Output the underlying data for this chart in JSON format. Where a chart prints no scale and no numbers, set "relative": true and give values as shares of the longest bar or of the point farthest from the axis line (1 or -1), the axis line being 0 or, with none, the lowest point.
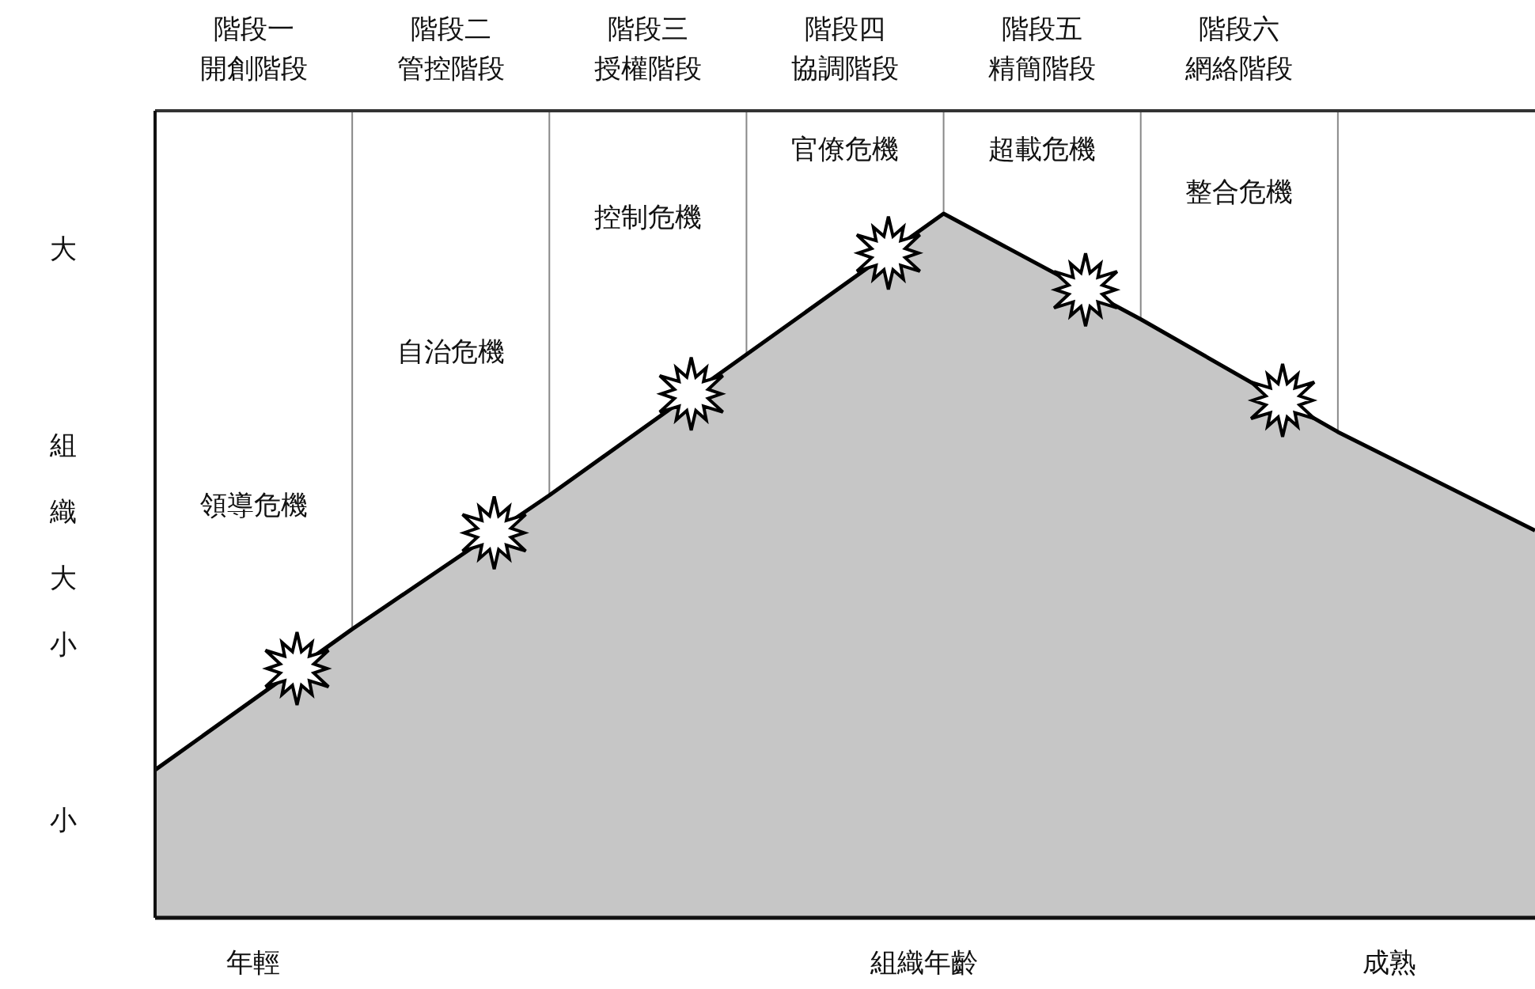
{
  "chart_data": {
    "type": "area",
    "relative": true,
    "xlabel": "組織年齡",
    "ylabel": "組織大小",
    "grid": "x",
    "categories": [
      null,
      null,
      null,
      null,
      null,
      null,
      null,
      null
    ],
    "series": [
      {
        "color": "#c6c6c6",
        "values": [
          0.21,
          0.41,
          0.6,
          0.8,
          1,
          0.85,
          0.69,
          0.55
        ]
      }
    ],
    "annotations": [
      "階段一",
      "開創階段",
      "階段二",
      "管控階段",
      "階段三",
      "授權階段",
      "階段四",
      "協調階段",
      "階段五",
      "精簡階段",
      "階段六",
      "網絡階段",
      "領導危機",
      "自治危機",
      "控制危機",
      "官僚危機",
      "超載危機",
      "整合危機",
      "大",
      "小",
      "年輕",
      "成熟"
    ]
  }
}
